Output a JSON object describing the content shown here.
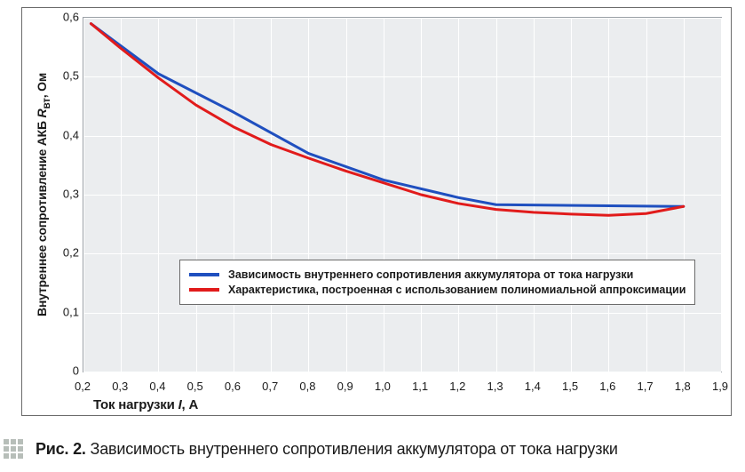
{
  "chart": {
    "type": "line",
    "background_color": "#ffffff",
    "plot_background_color": "#ebedef",
    "grid_color": "#ffffff",
    "axis_color": "#6b6b6b",
    "x": {
      "label_html": "Ток нагрузки <span class='axis-sub'>I</span>, А",
      "min": 0.2,
      "max": 1.9,
      "tick_step": 0.1,
      "ticks": [
        "0,2",
        "0,3",
        "0,4",
        "0,5",
        "0,6",
        "0,7",
        "0,8",
        "0,9",
        "1,0",
        "1,1",
        "1,2",
        "1,3",
        "1,4",
        "1,5",
        "1,6",
        "1,7",
        "1,8",
        "1,9"
      ]
    },
    "y": {
      "label_html": "Внутреннее сопротивление АКБ <span class='axis-sub'>R</span><sub>вт</sub>, Ом",
      "min": 0,
      "max": 0.6,
      "tick_step": 0.1,
      "ticks": [
        "0",
        "0,1",
        "0,2",
        "0,3",
        "0,4",
        "0,5",
        "0,6"
      ]
    },
    "series": [
      {
        "id": "measured",
        "label": "Зависимость внутреннего сопротивления аккумулятора от тока нагрузки",
        "color": "#1f4fbf",
        "line_width": 3,
        "x": [
          0.22,
          0.4,
          0.6,
          0.8,
          1.0,
          1.2,
          1.3,
          1.8
        ],
        "y": [
          0.59,
          0.505,
          0.44,
          0.37,
          0.325,
          0.295,
          0.283,
          0.28
        ]
      },
      {
        "id": "polynomial",
        "label": "Характеристика, построенная с использованием полиномиальной аппроксимации",
        "color": "#e11b1b",
        "line_width": 3,
        "x": [
          0.22,
          0.3,
          0.4,
          0.5,
          0.6,
          0.7,
          0.8,
          0.9,
          1.0,
          1.1,
          1.2,
          1.3,
          1.4,
          1.5,
          1.6,
          1.7,
          1.8
        ],
        "y": [
          0.59,
          0.548,
          0.498,
          0.452,
          0.415,
          0.385,
          0.362,
          0.34,
          0.32,
          0.3,
          0.285,
          0.275,
          0.27,
          0.267,
          0.265,
          0.268,
          0.28
        ]
      }
    ],
    "legend": {
      "position": "inside-bottom-left",
      "background": "#ffffff",
      "border": "#6b6b6b"
    }
  },
  "caption": {
    "fig_label": "Рис. 2.",
    "text": "Зависимость внутреннего сопротивления аккумулятора от тока нагрузки"
  }
}
